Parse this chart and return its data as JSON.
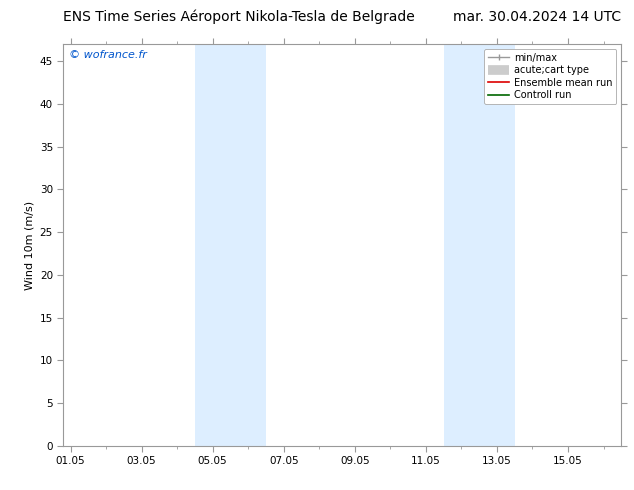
{
  "title_left": "ENS Time Series Aéroport Nikola-Tesla de Belgrade",
  "title_right": "mar. 30.04.2024 14 UTC",
  "ylabel": "Wind 10m (m/s)",
  "watermark": "© wofrance.fr",
  "watermark_color": "#0055cc",
  "background_color": "#ffffff",
  "plot_bg_color": "#ffffff",
  "ylim": [
    0,
    47
  ],
  "yticks": [
    0,
    5,
    10,
    15,
    20,
    25,
    30,
    35,
    40,
    45
  ],
  "xtick_labels": [
    "01.05",
    "03.05",
    "05.05",
    "07.05",
    "09.05",
    "11.05",
    "13.05",
    "15.05"
  ],
  "xtick_positions": [
    0,
    2,
    4,
    6,
    8,
    10,
    12,
    14
  ],
  "xlim": [
    -0.2,
    15.5
  ],
  "shade_bands": [
    {
      "xstart": 3.5,
      "xend": 5.5,
      "color": "#ddeeff"
    },
    {
      "xstart": 10.5,
      "xend": 12.5,
      "color": "#ddeeff"
    }
  ],
  "title_fontsize": 10,
  "axis_fontsize": 8,
  "tick_fontsize": 7.5,
  "watermark_fontsize": 8,
  "legend_fontsize": 7,
  "border_color": "#999999"
}
